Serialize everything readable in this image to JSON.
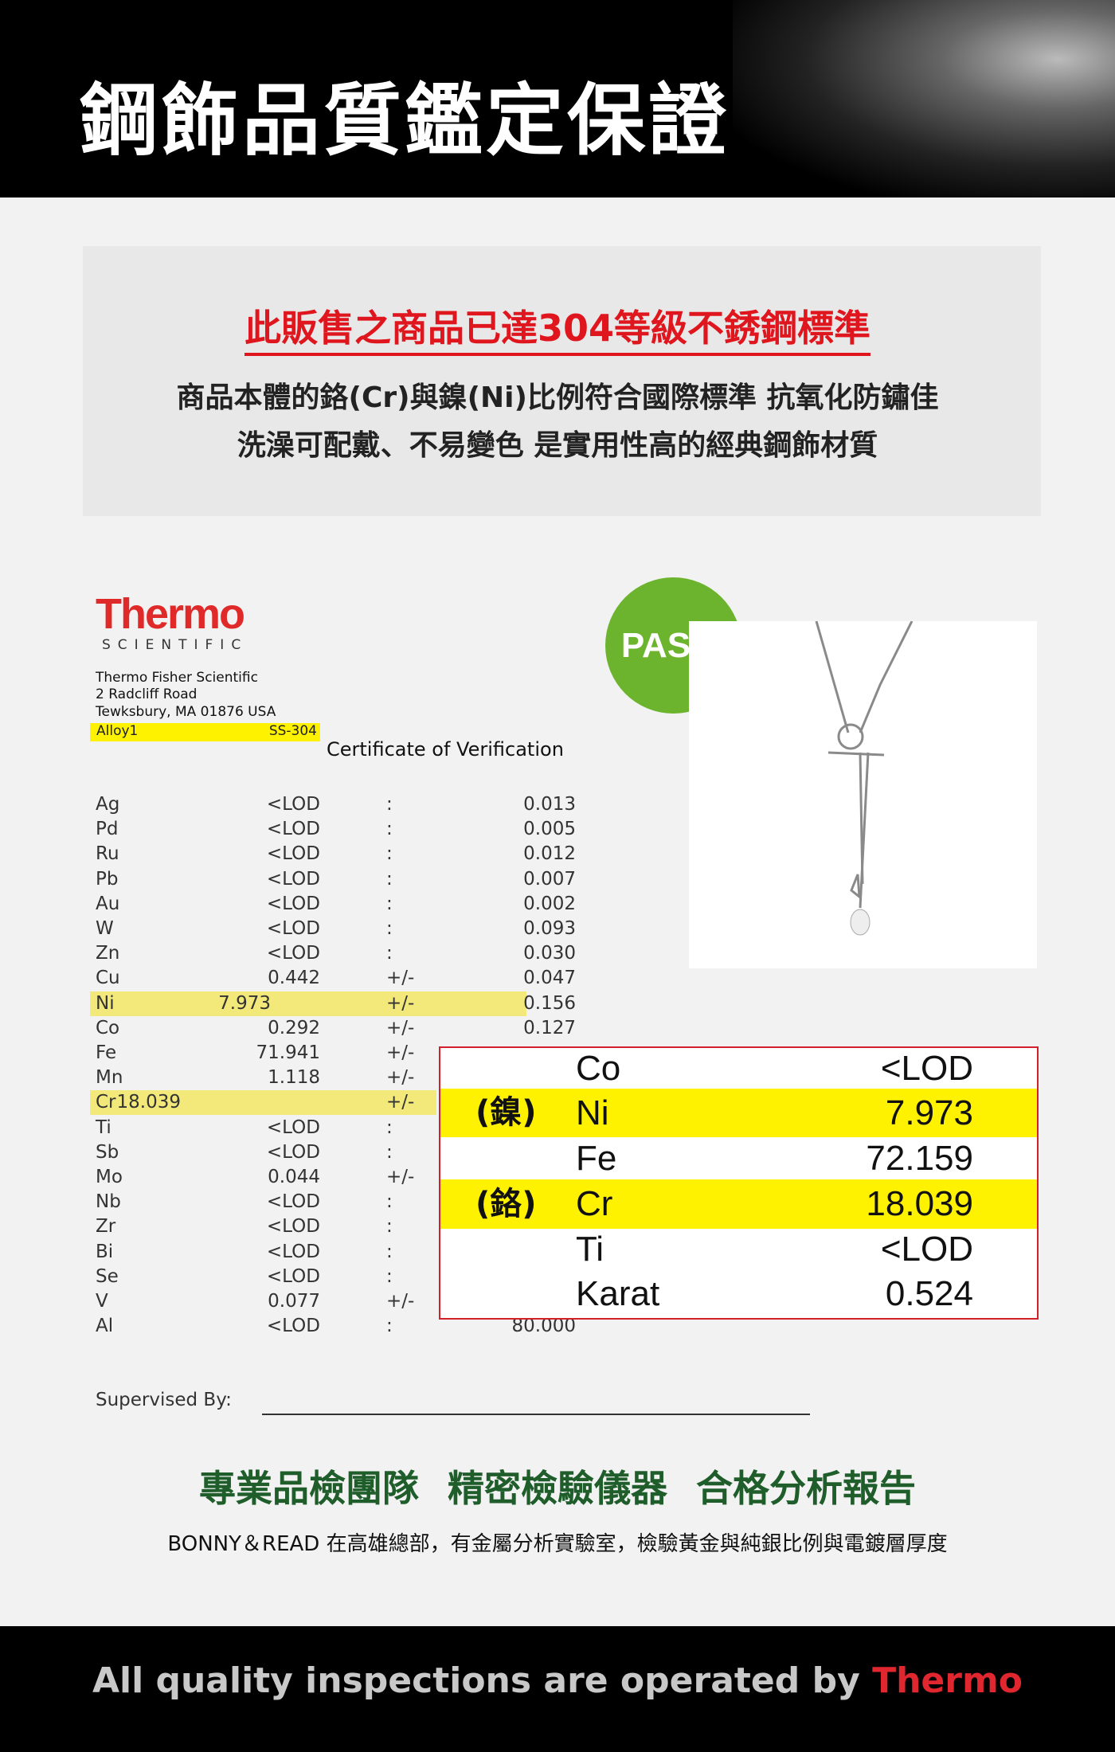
{
  "header": {
    "title": "鋼飾品質鑑定保證"
  },
  "intro": {
    "headline": "此販售之商品已達304等級不銹鋼標準",
    "line1": "商品本體的鉻(Cr)與鎳(Ni)比例符合國際標準  抗氧化防鏽佳",
    "line2": "洗澡可配戴、不易變色  是實用性高的經典鋼飾材質"
  },
  "certificate": {
    "logo": "Thermo",
    "logo_sub": "SCIENTIFIC",
    "address": [
      "Thermo Fisher Scientific",
      "2 Radcliff Road",
      "Tewksbury, MA 01876 USA"
    ],
    "alloy_label": "Alloy1",
    "alloy_grade": "SS-304",
    "title": "Certificate of Verification",
    "rows": [
      {
        "el": "Ag",
        "val": "<LOD",
        "sep": ":",
        "err": "0.013"
      },
      {
        "el": "Pd",
        "val": "<LOD",
        "sep": ":",
        "err": "0.005"
      },
      {
        "el": "Ru",
        "val": "<LOD",
        "sep": ":",
        "err": "0.012"
      },
      {
        "el": "Pb",
        "val": "<LOD",
        "sep": ":",
        "err": "0.007"
      },
      {
        "el": "Au",
        "val": "<LOD",
        "sep": ":",
        "err": "0.002"
      },
      {
        "el": "W",
        "val": "<LOD",
        "sep": ":",
        "err": "0.093"
      },
      {
        "el": "Zn",
        "val": "<LOD",
        "sep": ":",
        "err": "0.030"
      },
      {
        "el": "Cu",
        "val": "0.442",
        "sep": "+/-",
        "err": "0.047"
      },
      {
        "el": "Ni",
        "val": "7.973",
        "sep": "+/-",
        "err": "0.156",
        "hl": true
      },
      {
        "el": "Co",
        "val": "0.292",
        "sep": "+/-",
        "err": "0.127"
      },
      {
        "el": "Fe",
        "val": "71.941",
        "sep": "+/-",
        "err": ""
      },
      {
        "el": "Mn",
        "val": "1.118",
        "sep": "+/-",
        "err": ""
      },
      {
        "el": "Cr",
        "val": "18.039",
        "sep": "+/-",
        "err": "",
        "hl": true
      },
      {
        "el": "Ti",
        "val": "<LOD",
        "sep": ":",
        "err": ""
      },
      {
        "el": "Sb",
        "val": "<LOD",
        "sep": ":",
        "err": ""
      },
      {
        "el": "Mo",
        "val": "0.044",
        "sep": "+/-",
        "err": ""
      },
      {
        "el": "Nb",
        "val": "<LOD",
        "sep": ":",
        "err": ""
      },
      {
        "el": "Zr",
        "val": "<LOD",
        "sep": ":",
        "err": ""
      },
      {
        "el": "Bi",
        "val": "<LOD",
        "sep": ":",
        "err": ""
      },
      {
        "el": "Se",
        "val": "<LOD",
        "sep": ":",
        "err": ""
      },
      {
        "el": "V",
        "val": "0.077",
        "sep": "+/-",
        "err": ""
      },
      {
        "el": "Al",
        "val": "<LOD",
        "sep": ":",
        "err": "80.000"
      }
    ],
    "supervised_label": "Supervised By:"
  },
  "pass_badge": "PASS!",
  "summary": [
    {
      "zh": "",
      "el": "Co",
      "val": "<LOD"
    },
    {
      "zh": "(鎳)",
      "el": "Ni",
      "val": "7.973",
      "hl": true
    },
    {
      "zh": "",
      "el": "Fe",
      "val": "72.159"
    },
    {
      "zh": "(鉻)",
      "el": "Cr",
      "val": "18.039",
      "hl": true
    },
    {
      "zh": "",
      "el": "Ti",
      "val": "<LOD"
    },
    {
      "zh": "",
      "el": "Karat",
      "val": "0.524"
    }
  ],
  "team": {
    "headline": "專業品檢團隊  精密檢驗儀器  合格分析報告",
    "desc": "BONNY＆READ 在高雄總部，有金屬分析實驗室，檢驗黃金與純銀比例與電鍍層厚度"
  },
  "footer": {
    "text": "All quality inspections are operated by ",
    "brand": "Thermo"
  },
  "colors": {
    "red": "#e0161e",
    "green": "#1f5d2b",
    "pass": "#6cb42e",
    "highlight": "#fff200"
  }
}
